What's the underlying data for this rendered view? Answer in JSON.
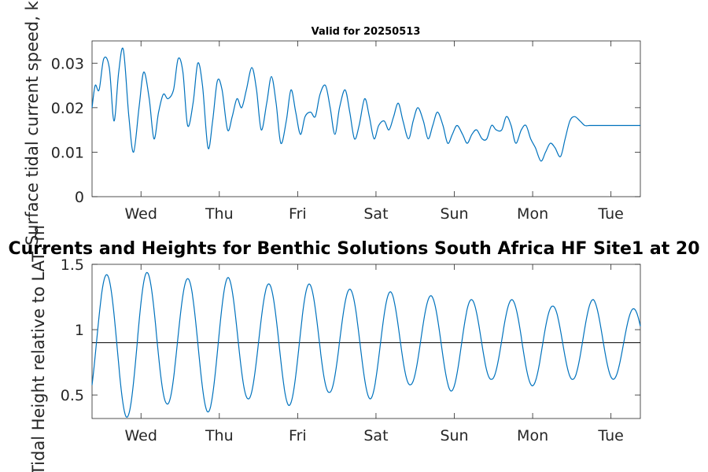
{
  "figure": {
    "suptitle": "Valid for 20250513",
    "main_title": "Currents and Heights for Benthic Solutions South Africa HF Site1 at 20"
  },
  "chart_data": [
    {
      "type": "line",
      "ylabel": "Surface tidal current speed, kn",
      "xlabel": "",
      "x_unit": "days",
      "xlim": [
        0,
        7.0
      ],
      "ylim": [
        0,
        0.035
      ],
      "x_tick_values": [
        0.625,
        1.625,
        2.625,
        3.625,
        4.625,
        5.625,
        6.625
      ],
      "x_tick_labels": [
        "Wed",
        "Thu",
        "Fri",
        "Sat",
        "Sun",
        "Mon",
        "Tue"
      ],
      "y_tick_values": [
        0,
        0.01,
        0.02,
        0.03
      ],
      "y_tick_labels": [
        "0",
        "0.01",
        "0.02",
        "0.03"
      ],
      "grid": false,
      "color": "#0072BD",
      "series": [
        {
          "x": [
            0,
            0.04,
            0.09,
            0.15,
            0.22,
            0.28,
            0.34,
            0.4,
            0.47,
            0.53,
            0.6,
            0.66,
            0.73,
            0.79,
            0.85,
            0.91,
            0.97,
            1.04,
            1.1,
            1.16,
            1.22,
            1.29,
            1.35,
            1.41,
            1.48,
            1.54,
            1.6,
            1.66,
            1.73,
            1.79,
            1.85,
            1.91,
            1.97,
            2.04,
            2.1,
            2.16,
            2.23,
            2.29,
            2.35,
            2.41,
            2.48,
            2.54,
            2.6,
            2.66,
            2.72,
            2.79,
            2.85,
            2.91,
            2.98,
            3.04,
            3.1,
            3.16,
            3.23,
            3.29,
            3.35,
            3.41,
            3.48,
            3.54,
            3.6,
            3.66,
            3.73,
            3.79,
            3.85,
            3.91,
            3.97,
            4.04,
            4.1,
            4.16,
            4.23,
            4.29,
            4.35,
            4.41,
            4.48,
            4.54,
            4.6,
            4.66,
            4.73,
            4.79,
            4.85,
            4.91,
            4.98,
            5.04,
            5.1,
            5.16,
            5.23,
            5.29,
            5.35,
            5.41,
            5.48,
            5.54,
            5.6,
            5.66,
            5.73,
            5.79,
            5.85,
            5.91,
            5.98,
            6.04,
            6.1,
            6.16,
            6.23,
            6.29,
            6.35,
            6.41,
            6.48,
            6.54,
            6.6,
            6.66,
            6.73,
            6.79,
            6.85,
            6.91,
            6.98,
            7.0
          ],
          "values": [
            0.02,
            0.025,
            0.024,
            0.031,
            0.029,
            0.017,
            0.028,
            0.033,
            0.018,
            0.01,
            0.02,
            0.028,
            0.022,
            0.013,
            0.019,
            0.023,
            0.022,
            0.024,
            0.031,
            0.028,
            0.016,
            0.021,
            0.03,
            0.025,
            0.011,
            0.017,
            0.026,
            0.024,
            0.015,
            0.018,
            0.022,
            0.02,
            0.024,
            0.029,
            0.024,
            0.015,
            0.021,
            0.027,
            0.021,
            0.012,
            0.017,
            0.024,
            0.019,
            0.014,
            0.018,
            0.019,
            0.018,
            0.023,
            0.025,
            0.02,
            0.014,
            0.02,
            0.024,
            0.019,
            0.013,
            0.016,
            0.022,
            0.018,
            0.013,
            0.016,
            0.017,
            0.015,
            0.018,
            0.021,
            0.017,
            0.013,
            0.017,
            0.02,
            0.017,
            0.013,
            0.016,
            0.019,
            0.016,
            0.012,
            0.014,
            0.016,
            0.014,
            0.012,
            0.014,
            0.015,
            0.013,
            0.013,
            0.016,
            0.015,
            0.015,
            0.018,
            0.016,
            0.012,
            0.015,
            0.016,
            0.013,
            0.011,
            0.008,
            0.01,
            0.012,
            0.011,
            0.009,
            0.013,
            0.017,
            0.018,
            0.017,
            0.016,
            0.016,
            0.016,
            0.016,
            0.016,
            0.016,
            0.016,
            0.016,
            0.016,
            0.016,
            0.016,
            0.016,
            0.016
          ]
        }
      ]
    },
    {
      "type": "line",
      "ylabel": "Tidal Height relative to LAT, m",
      "xlabel": "",
      "x_unit": "days",
      "xlim": [
        0,
        7.0
      ],
      "ylim": [
        0.32,
        1.5
      ],
      "x_tick_values": [
        0.625,
        1.625,
        2.625,
        3.625,
        4.625,
        5.625,
        6.625
      ],
      "x_tick_labels": [
        "Wed",
        "Thu",
        "Fri",
        "Sat",
        "Sun",
        "Mon",
        "Tue"
      ],
      "y_tick_values": [
        0.5,
        1.0,
        1.5
      ],
      "y_tick_labels": [
        "0.5",
        "1",
        "1.5"
      ],
      "grid": false,
      "reference_line": 0.9,
      "color": "#0072BD",
      "period_days": 0.5175,
      "phase_days": 0.0,
      "envelope": {
        "x": [
          0,
          0.18,
          0.43,
          0.69,
          0.95,
          1.21,
          1.47,
          1.73,
          1.99,
          2.25,
          2.51,
          2.77,
          3.03,
          3.29,
          3.55,
          3.81,
          4.07,
          4.33,
          4.58,
          4.84,
          5.1,
          5.36,
          5.62,
          5.88,
          6.14,
          6.4,
          6.66,
          6.92,
          7.0
        ],
        "max": [
          1.42,
          1.42,
          1.44,
          1.44,
          1.39,
          1.39,
          1.4,
          1.4,
          1.35,
          1.35,
          1.35,
          1.35,
          1.31,
          1.31,
          1.29,
          1.29,
          1.26,
          1.26,
          1.23,
          1.23,
          1.23,
          1.23,
          1.18,
          1.18,
          1.23,
          1.23,
          1.16,
          1.16,
          1.16
        ],
        "min": [
          0.39,
          0.39,
          0.33,
          0.33,
          0.43,
          0.43,
          0.37,
          0.37,
          0.47,
          0.47,
          0.42,
          0.42,
          0.52,
          0.52,
          0.47,
          0.47,
          0.58,
          0.58,
          0.53,
          0.53,
          0.62,
          0.62,
          0.57,
          0.57,
          0.62,
          0.62,
          0.62,
          0.62,
          0.62
        ]
      }
    }
  ]
}
